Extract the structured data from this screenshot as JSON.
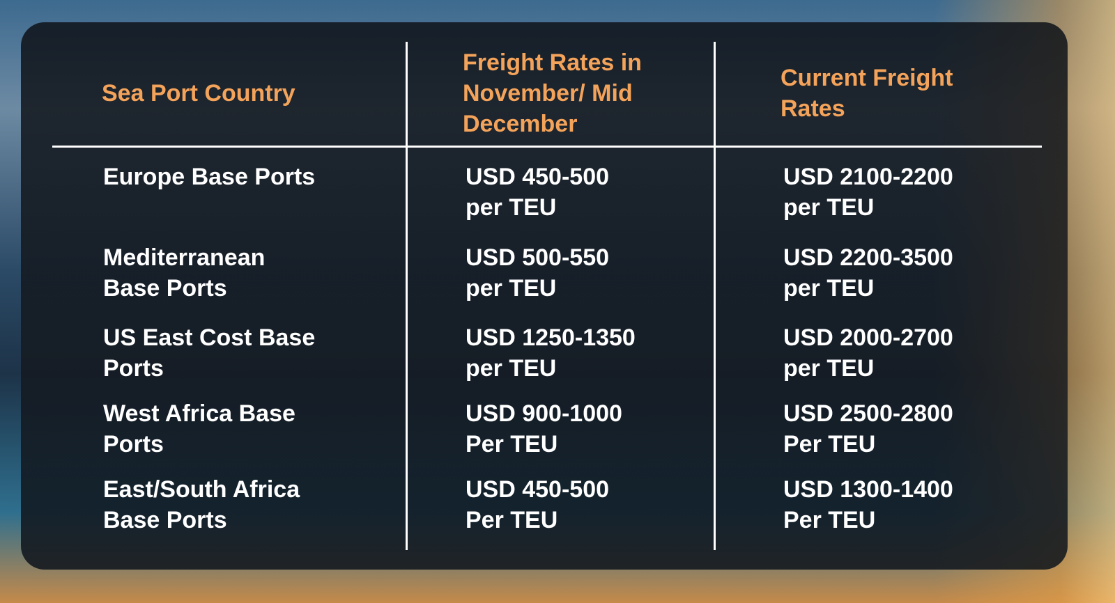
{
  "table": {
    "headers": [
      "Sea Port Country",
      "Freight Rates in November/ Mid December",
      "Current Freight Rates"
    ],
    "rows": [
      [
        "Europe Base Ports",
        "USD 450-500 per TEU",
        "USD 2100-2200 per TEU"
      ],
      [
        "Mediterranean Base Ports",
        "USD 500-550 per TEU",
        "USD 2200-3500 per TEU"
      ],
      [
        "US East Cost Base Ports",
        "USD 1250-1350 per TEU",
        "USD 2000-2700 per TEU"
      ],
      [
        "West Africa Base Ports",
        "USD 900-1000 Per TEU",
        "USD 2500-2800 Per TEU"
      ],
      [
        "East/South Africa Base Ports",
        "USD 450-500 Per TEU",
        "USD 1300-1400 Per TEU"
      ]
    ]
  }
}
